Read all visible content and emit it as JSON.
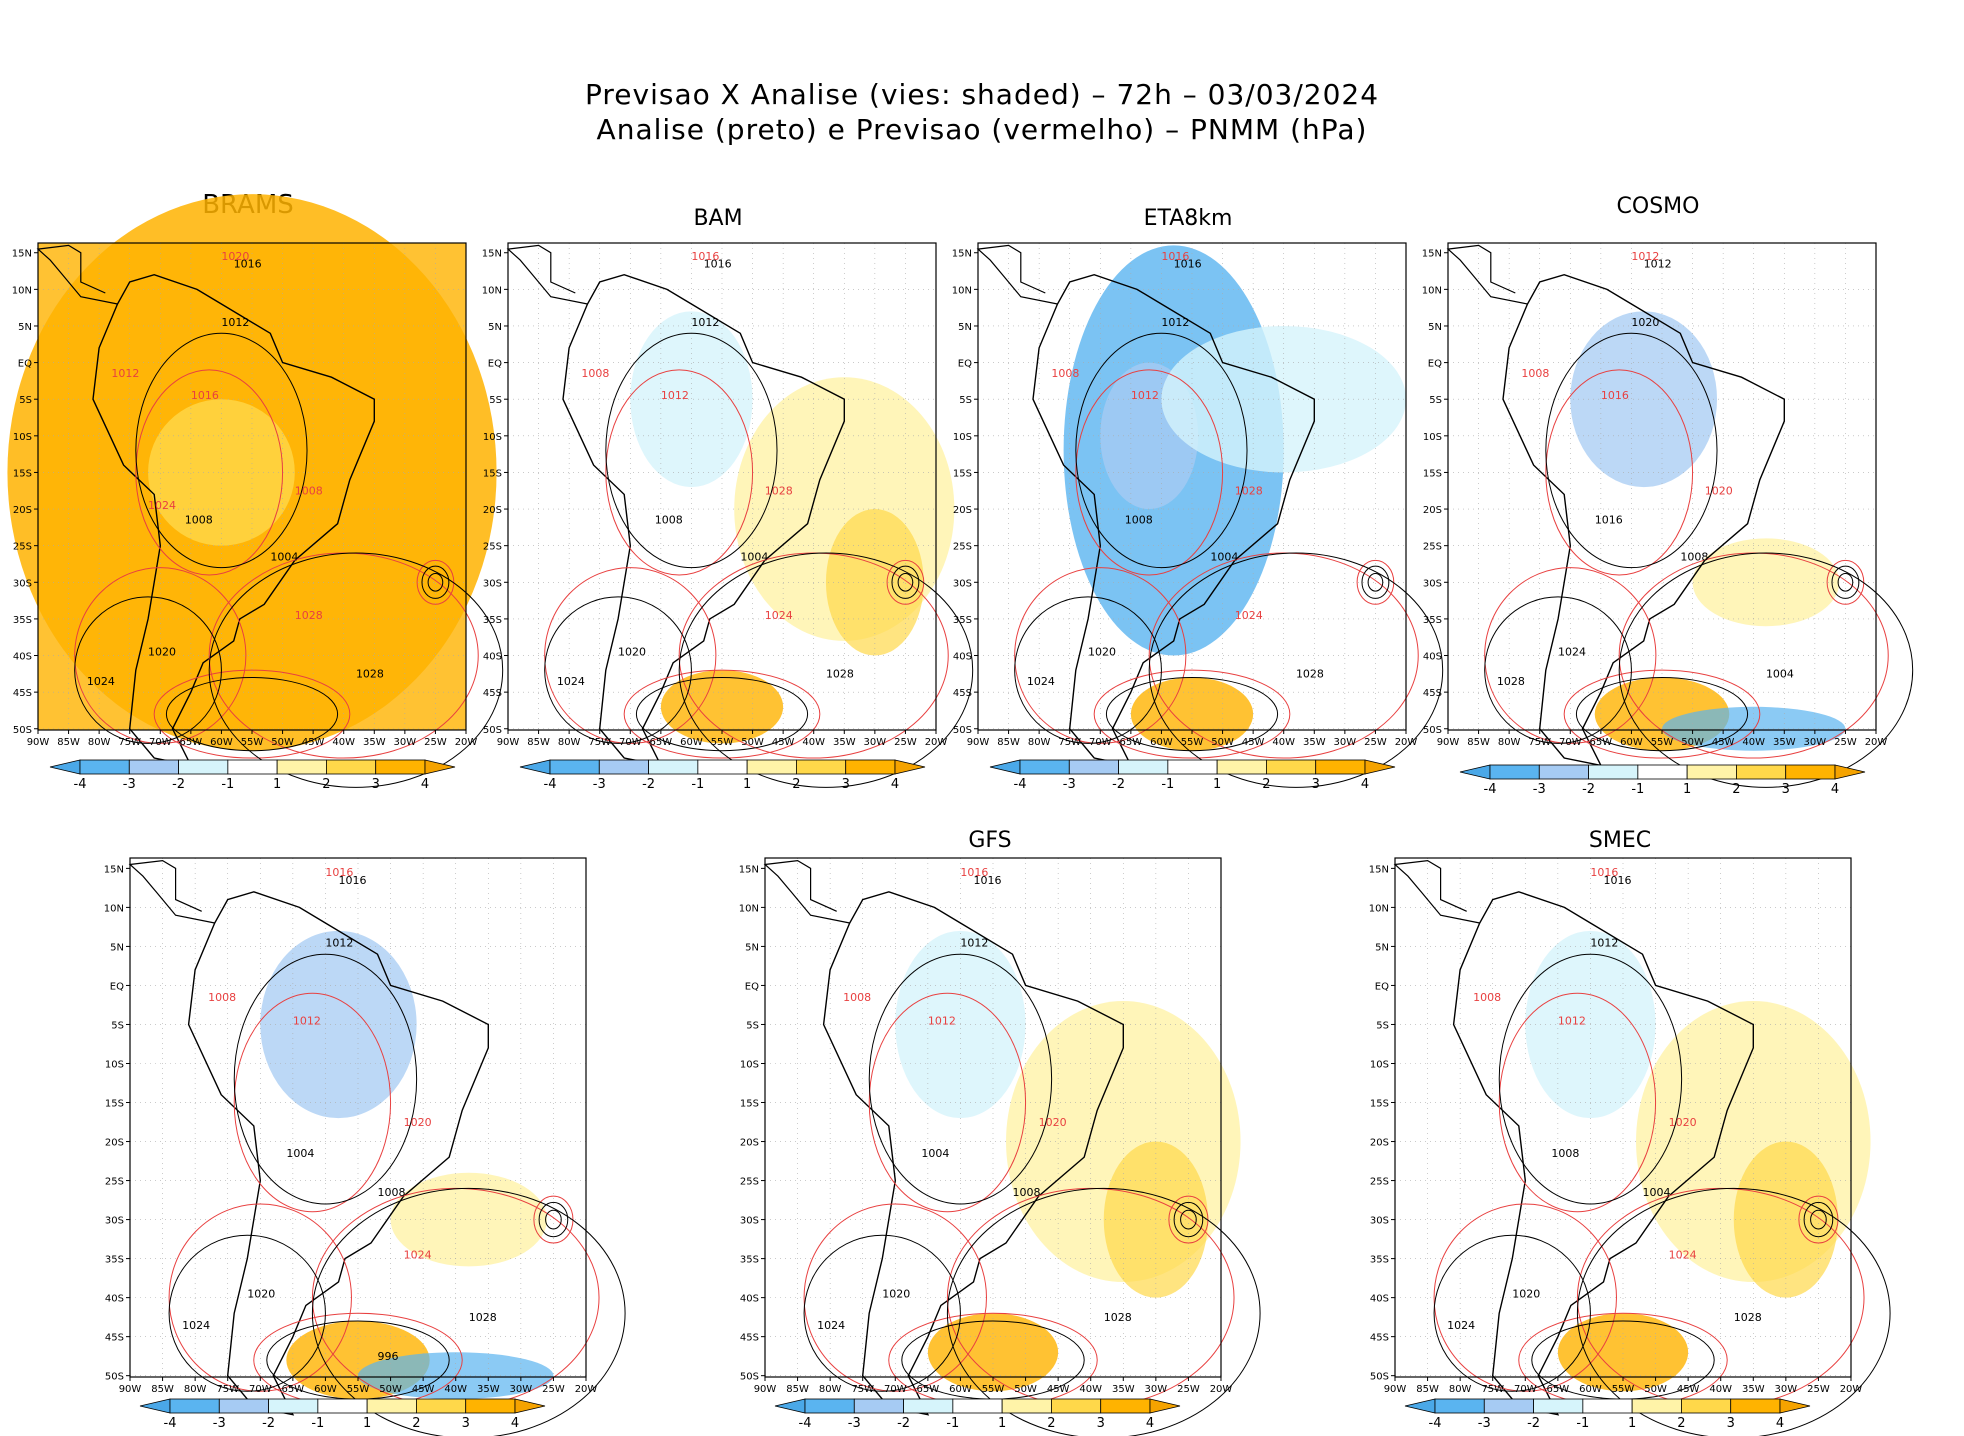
{
  "header": {
    "line1": "Previsao X Analise (vies: shaded) – 72h – 03/03/2024",
    "line2": "Analise (preto) e Previsao (vermelho) – PNMM (hPa)"
  },
  "axes": {
    "lat_labels": [
      "15N",
      "10N",
      "5N",
      "EQ",
      "5S",
      "10S",
      "15S",
      "20S",
      "25S",
      "30S",
      "35S",
      "40S",
      "45S",
      "50S"
    ],
    "lon_labels": [
      "90W",
      "85W",
      "80W",
      "75W",
      "70W",
      "65W",
      "60W",
      "55W",
      "50W",
      "45W",
      "40W",
      "35W",
      "30W",
      "25W",
      "20W"
    ]
  },
  "colorbar": {
    "labels": [
      "-4",
      "-3",
      "-2",
      "-1",
      "1",
      "2",
      "3",
      "4"
    ],
    "colors": [
      "#5ab4f0",
      "#a6cbf3",
      "#d6f4fb",
      "#ffffff",
      "#fff3a8",
      "#ffd84a",
      "#ffb300"
    ],
    "left_arrow_color": "#4aa8e8",
    "right_arrow_color": "#f5a300"
  },
  "colors": {
    "analysis_contour": "#000000",
    "forecast_contour": "#e84040",
    "grid": "#aaaaaa"
  },
  "panels": [
    {
      "model": "BRAMS",
      "bias": "warm",
      "contour_labels": {
        "black": [
          "1016",
          "1012",
          "1008",
          "1004",
          "1028",
          "1024",
          "1020"
        ],
        "red": [
          "1020",
          "1016",
          "1012",
          "1008",
          "1028",
          "1024"
        ]
      }
    },
    {
      "model": "BAM",
      "bias": "mild",
      "contour_labels": {
        "black": [
          "1016",
          "1012",
          "1008",
          "1004",
          "1028",
          "1024",
          "1020"
        ],
        "red": [
          "1016",
          "1012",
          "1008",
          "1028",
          "1024"
        ]
      }
    },
    {
      "model": "ETA8km",
      "bias": "cold",
      "contour_labels": {
        "black": [
          "1016",
          "1012",
          "1008",
          "1004",
          "1028",
          "1024",
          "1020"
        ],
        "red": [
          "1016",
          "1012",
          "1008",
          "1028",
          "1024"
        ]
      }
    },
    {
      "model": "COSMO",
      "bias": "mixed",
      "contour_labels": {
        "black": [
          "1012",
          "1020",
          "1016",
          "1008",
          "1004",
          "1028",
          "1024"
        ],
        "red": [
          "1012",
          "1016",
          "1008",
          "1020"
        ]
      }
    },
    {
      "model": "",
      "bias": "mixed",
      "contour_labels": {
        "black": [
          "1016",
          "1012",
          "1004",
          "1008",
          "1028",
          "1024",
          "1020",
          "996"
        ],
        "red": [
          "1016",
          "1012",
          "1008",
          "1020",
          "1024"
        ]
      }
    },
    {
      "model": "GFS",
      "bias": "mild",
      "contour_labels": {
        "black": [
          "1016",
          "1012",
          "1004",
          "1008",
          "1028",
          "1024",
          "1020"
        ],
        "red": [
          "1016",
          "1012",
          "1008",
          "1020"
        ]
      }
    },
    {
      "model": "SMEC",
      "bias": "mild",
      "contour_labels": {
        "black": [
          "1016",
          "1012",
          "1008",
          "1004",
          "1028",
          "1024",
          "1020"
        ],
        "red": [
          "1016",
          "1012",
          "1008",
          "1020",
          "1024"
        ]
      }
    }
  ]
}
